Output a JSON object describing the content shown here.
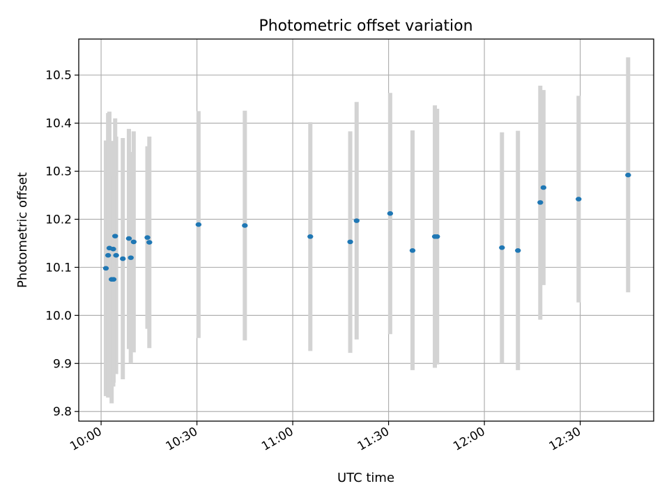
{
  "chart_data": {
    "type": "scatter",
    "title": "Photometric offset variation",
    "xlabel": "UTC time",
    "ylabel": "Photometric offset",
    "grid": true,
    "xlim_minutes": [
      -7,
      173
    ],
    "ylim": [
      9.78,
      10.575
    ],
    "x_ticks": [
      {
        "minutes": 0,
        "label": "10:00"
      },
      {
        "minutes": 30,
        "label": "10:30"
      },
      {
        "minutes": 60,
        "label": "11:00"
      },
      {
        "minutes": 90,
        "label": "11:30"
      },
      {
        "minutes": 120,
        "label": "12:00"
      },
      {
        "minutes": 150,
        "label": "12:30"
      }
    ],
    "y_ticks": [
      {
        "value": 9.8,
        "label": "9.8"
      },
      {
        "value": 9.9,
        "label": "9.9"
      },
      {
        "value": 10.0,
        "label": "10.0"
      },
      {
        "value": 10.1,
        "label": "10.1"
      },
      {
        "value": 10.2,
        "label": "10.2"
      },
      {
        "value": 10.3,
        "label": "10.3"
      },
      {
        "value": 10.4,
        "label": "10.4"
      },
      {
        "value": 10.5,
        "label": "10.5"
      }
    ],
    "marker_color": "#1f77b4",
    "errorbar_color": "#d3d3d3",
    "points": [
      {
        "minutes": 1.5,
        "value": 10.098,
        "low": 9.832,
        "high": 10.364
      },
      {
        "minutes": 2.2,
        "value": 10.125,
        "low": 9.829,
        "high": 10.421
      },
      {
        "minutes": 2.6,
        "value": 10.14,
        "low": 9.856,
        "high": 10.424
      },
      {
        "minutes": 3.3,
        "value": 10.075,
        "low": 9.817,
        "high": 10.333
      },
      {
        "minutes": 3.8,
        "value": 10.138,
        "low": 9.852,
        "high": 10.363
      },
      {
        "minutes": 4.4,
        "value": 10.165,
        "low": 9.878,
        "high": 10.41
      },
      {
        "minutes": 4.7,
        "value": 10.125,
        "low": 9.878,
        "high": 10.372
      },
      {
        "minutes": 3.9,
        "value": 10.075,
        "low": 9.86,
        "high": 10.29
      },
      {
        "minutes": 6.8,
        "value": 10.118,
        "low": 9.867,
        "high": 10.369
      },
      {
        "minutes": 8.7,
        "value": 10.16,
        "low": 9.93,
        "high": 10.388
      },
      {
        "minutes": 9.3,
        "value": 10.12,
        "low": 9.9,
        "high": 10.34
      },
      {
        "minutes": 10.2,
        "value": 10.153,
        "low": 9.923,
        "high": 10.383
      },
      {
        "minutes": 14.5,
        "value": 10.162,
        "low": 9.972,
        "high": 10.352
      },
      {
        "minutes": 15.1,
        "value": 10.152,
        "low": 9.932,
        "high": 10.372
      },
      {
        "minutes": 30.5,
        "value": 10.189,
        "low": 9.953,
        "high": 10.425
      },
      {
        "minutes": 45.0,
        "value": 10.187,
        "low": 9.948,
        "high": 10.426
      },
      {
        "minutes": 65.5,
        "value": 10.164,
        "low": 9.926,
        "high": 10.402
      },
      {
        "minutes": 78.0,
        "value": 10.153,
        "low": 9.922,
        "high": 10.383
      },
      {
        "minutes": 80.0,
        "value": 10.197,
        "low": 9.95,
        "high": 10.444
      },
      {
        "minutes": 90.5,
        "value": 10.212,
        "low": 9.961,
        "high": 10.463
      },
      {
        "minutes": 97.5,
        "value": 10.135,
        "low": 9.886,
        "high": 10.385
      },
      {
        "minutes": 104.5,
        "value": 10.164,
        "low": 9.891,
        "high": 10.437
      },
      {
        "minutes": 105.2,
        "value": 10.164,
        "low": 9.898,
        "high": 10.43
      },
      {
        "minutes": 125.5,
        "value": 10.141,
        "low": 9.9,
        "high": 10.381
      },
      {
        "minutes": 130.5,
        "value": 10.135,
        "low": 9.886,
        "high": 10.384
      },
      {
        "minutes": 137.5,
        "value": 10.235,
        "low": 9.991,
        "high": 10.478
      },
      {
        "minutes": 138.5,
        "value": 10.266,
        "low": 10.063,
        "high": 10.469
      },
      {
        "minutes": 149.5,
        "value": 10.242,
        "low": 10.027,
        "high": 10.457
      },
      {
        "minutes": 165.0,
        "value": 10.292,
        "low": 10.048,
        "high": 10.537
      }
    ]
  }
}
